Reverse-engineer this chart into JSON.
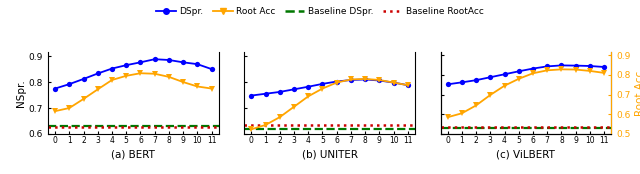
{
  "x": [
    0,
    1,
    2,
    3,
    4,
    5,
    6,
    7,
    8,
    9,
    10,
    11
  ],
  "bert": {
    "dspr": [
      0.775,
      0.792,
      0.812,
      0.833,
      0.852,
      0.865,
      0.876,
      0.888,
      0.885,
      0.876,
      0.869,
      0.85
    ],
    "root_acc": [
      0.688,
      0.7,
      0.735,
      0.772,
      0.808,
      0.824,
      0.834,
      0.832,
      0.82,
      0.8,
      0.783,
      0.775
    ],
    "baseline_dspr": 0.632,
    "baseline_root": 0.628,
    "ylim": [
      0.6,
      0.915
    ],
    "yticks": [
      0.6,
      0.7,
      0.8,
      0.9
    ],
    "show_left_yticks": true,
    "show_right_yticks": false,
    "ylabel_left": "NSpr.",
    "ylabel_right": null,
    "title": "(a) BERT"
  },
  "uniter": {
    "dspr": [
      0.748,
      0.755,
      0.762,
      0.772,
      0.782,
      0.793,
      0.802,
      0.808,
      0.81,
      0.806,
      0.798,
      0.788
    ],
    "root_acc": [
      0.618,
      0.635,
      0.665,
      0.705,
      0.745,
      0.775,
      0.798,
      0.81,
      0.812,
      0.808,
      0.798,
      0.788
    ],
    "baseline_dspr": 0.62,
    "baseline_root": 0.635,
    "ylim": [
      0.6,
      0.915
    ],
    "yticks": [
      0.6,
      0.7,
      0.8,
      0.9
    ],
    "show_left_yticks": false,
    "show_right_yticks": false,
    "ylabel_left": null,
    "ylabel_right": null,
    "title": "(b) UNITER"
  },
  "vilbert": {
    "dspr": [
      0.752,
      0.762,
      0.773,
      0.788,
      0.803,
      0.818,
      0.832,
      0.843,
      0.848,
      0.847,
      0.845,
      0.84
    ],
    "root_acc": [
      0.585,
      0.605,
      0.645,
      0.698,
      0.745,
      0.78,
      0.808,
      0.823,
      0.828,
      0.827,
      0.82,
      0.81
    ],
    "baseline_dspr": 0.528,
    "baseline_root": 0.533,
    "ylim": [
      0.5,
      0.915
    ],
    "yticks": [
      0.5,
      0.6,
      0.7,
      0.8,
      0.9
    ],
    "show_left_yticks": false,
    "show_right_yticks": true,
    "ylabel_left": null,
    "ylabel_right": "Root Acc",
    "title": "(c) ViLBERT"
  },
  "colors": {
    "dspr": "#0000ff",
    "root_acc": "#ffa500",
    "baseline_dspr": "#007700",
    "baseline_root": "#cc0000"
  },
  "legend_labels": [
    "DSpr.",
    "Root Acc",
    "Baseline DSpr.",
    "Baseline RootAcc"
  ]
}
